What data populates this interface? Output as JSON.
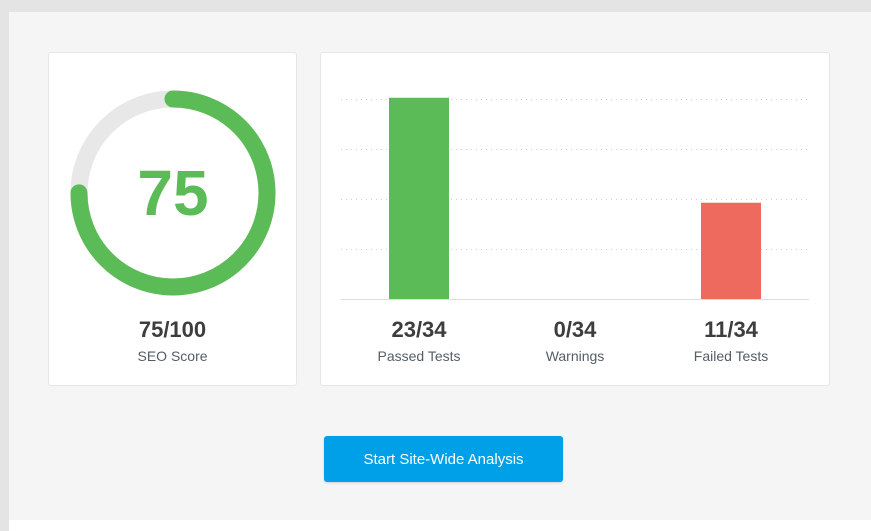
{
  "colors": {
    "pass": "#5bbb56",
    "fail": "#ee6a5e",
    "track": "#e8e8e8",
    "accent": "#00a0e8"
  },
  "score": {
    "value": 75,
    "max": 100,
    "display": "75",
    "fraction": "75/100",
    "label": "SEO Score"
  },
  "tests": {
    "total": 34,
    "items": [
      {
        "count": 23,
        "fraction": "23/34",
        "label": "Passed Tests",
        "color": "#5bbb56"
      },
      {
        "count": 0,
        "fraction": "0/34",
        "label": "Warnings",
        "color": "#f0ad4e"
      },
      {
        "count": 11,
        "fraction": "11/34",
        "label": "Failed Tests",
        "color": "#ee6a5e"
      }
    ]
  },
  "chart_data": {
    "type": "bar",
    "categories": [
      "Passed Tests",
      "Warnings",
      "Failed Tests"
    ],
    "values": [
      23,
      0,
      11
    ],
    "ylim": [
      0,
      24
    ],
    "grid": true,
    "xlabel": "",
    "ylabel": ""
  },
  "actions": {
    "analyze_label": "Start Site-Wide Analysis"
  }
}
